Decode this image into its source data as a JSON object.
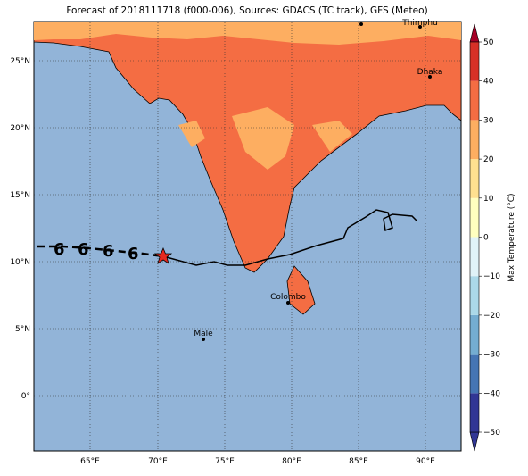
{
  "title": "Forecast of 2018111718 (f000-006), Sources: GDACS (TC track), GFS (Meteo)",
  "lon_labels": [
    "65°E",
    "70°E",
    "75°E",
    "80°E",
    "85°E",
    "90°E"
  ],
  "lat_labels": [
    "25°N",
    "20°N",
    "15°N",
    "10°N",
    "5°N",
    "0°"
  ],
  "cities": [
    "Thimphu",
    "Dhaka",
    "Colombo",
    "Male"
  ],
  "colorbar": {
    "label": "Max Temperature (°C)",
    "ticks": [
      50,
      40,
      30,
      20,
      10,
      0,
      {
        "value": -10,
        "label": "−10"
      },
      {
        "value": -20,
        "label": "−20"
      },
      {
        "value": -30,
        "label": "−30"
      },
      {
        "value": -40,
        "label": "−40"
      },
      {
        "value": -50,
        "label": "−50"
      }
    ]
  }
}
